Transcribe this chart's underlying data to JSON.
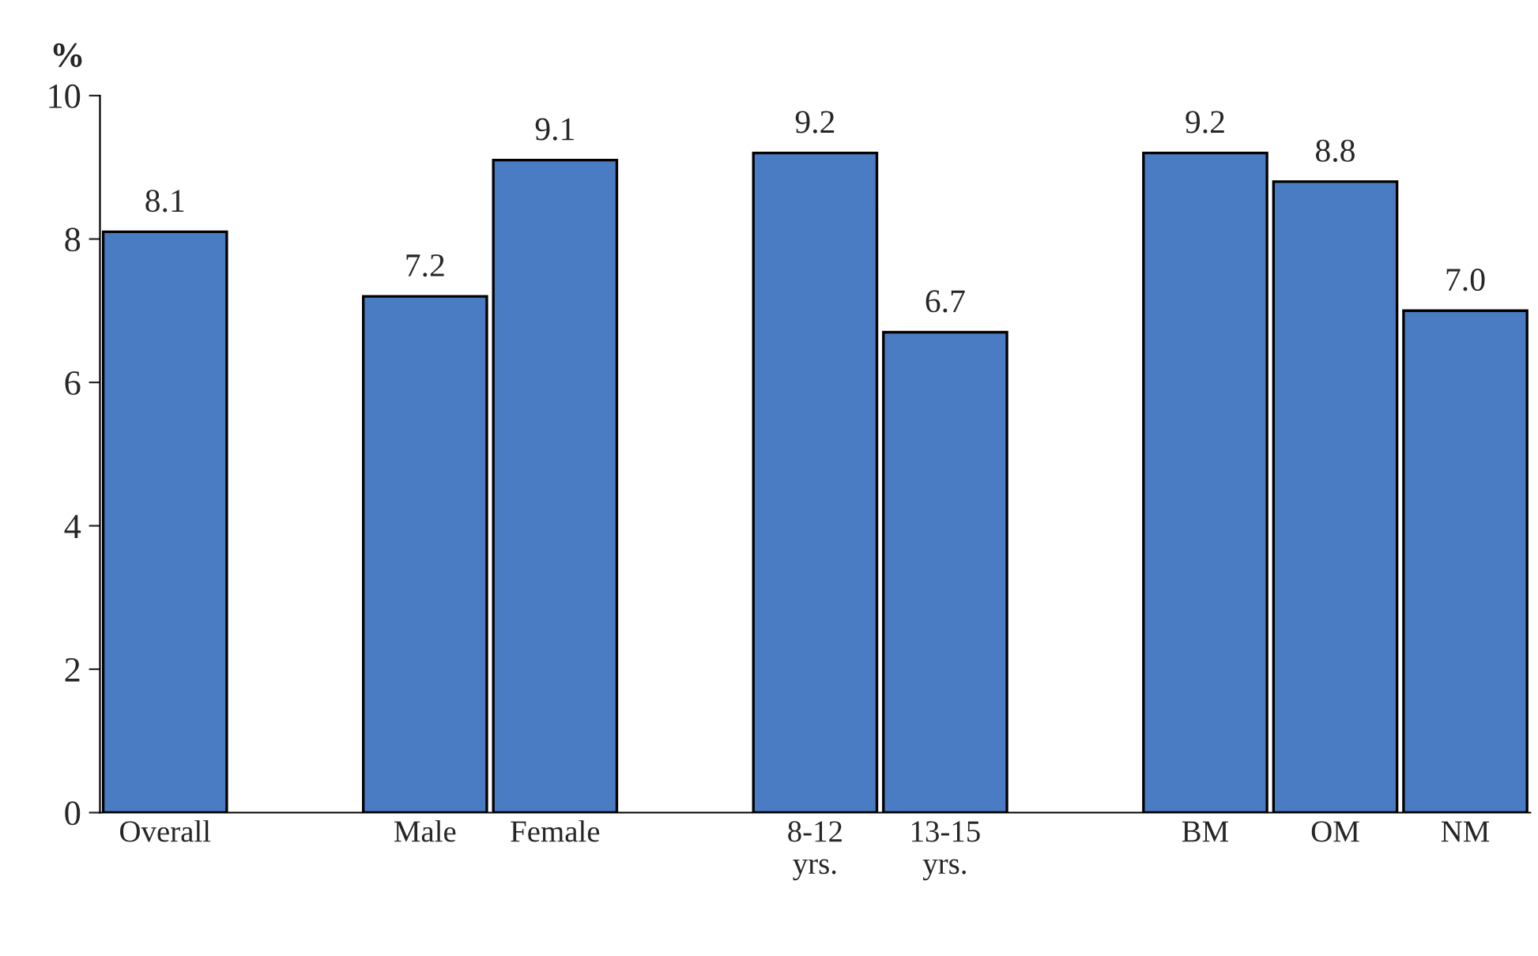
{
  "chart_data": {
    "type": "bar",
    "ylabel": "%",
    "categories": [
      "Overall",
      null,
      "Male",
      "Female",
      null,
      "8-12\nyrs.",
      "13-15\nyrs.",
      null,
      "BM",
      "OM",
      "NM"
    ],
    "values": [
      8.1,
      null,
      7.2,
      9.1,
      null,
      9.2,
      6.7,
      null,
      9.2,
      8.8,
      7.0
    ],
    "color": "#4a7cc4",
    "ylim": [
      0,
      10
    ],
    "yticks": [
      0,
      2,
      4,
      6,
      8,
      10
    ],
    "value_labels": [
      "8.1",
      null,
      "7.2",
      "9.1",
      null,
      "9.2",
      "6.7",
      null,
      "9.2",
      "8.8",
      "7.0"
    ],
    "grid": false,
    "legend": false
  }
}
